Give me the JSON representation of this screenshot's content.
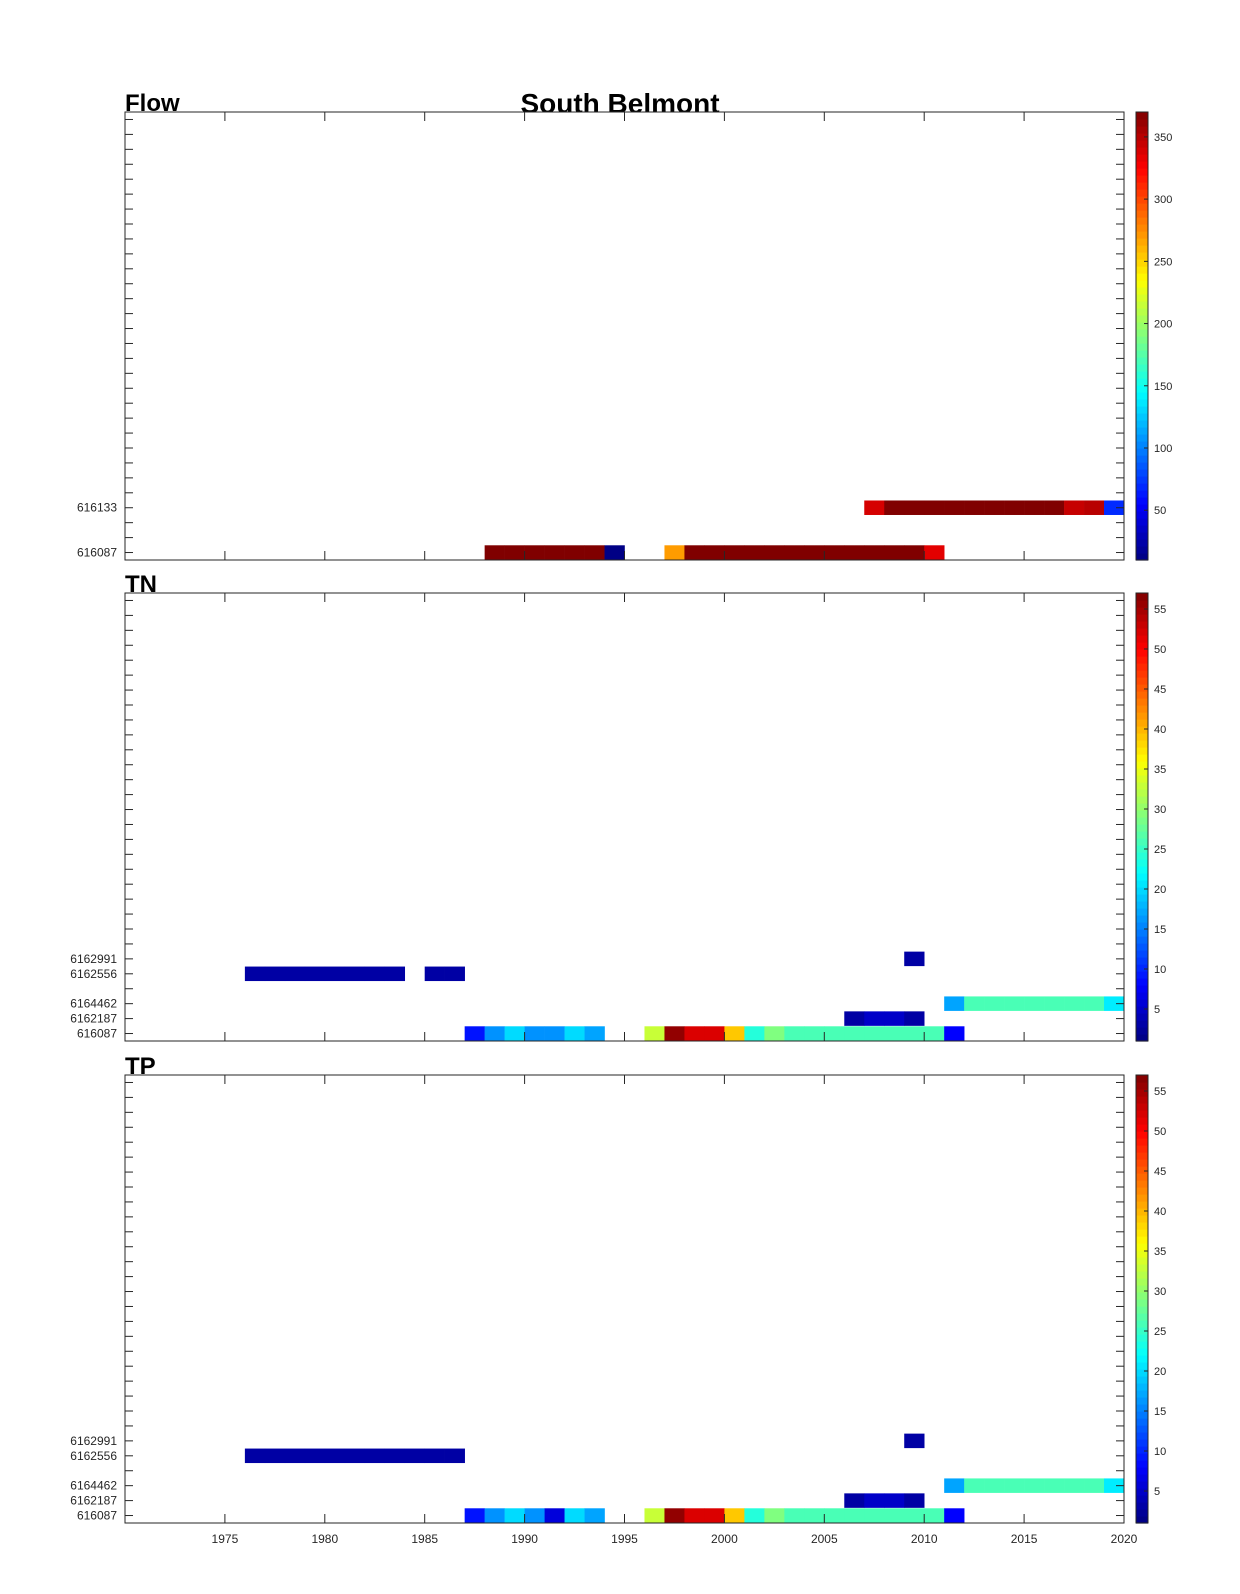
{
  "figure_title": "South Belmont",
  "colormap": "jet",
  "chart_data": [
    {
      "type": "heatmap",
      "title": "Flow",
      "xlim": [
        1970,
        2020
      ],
      "xticks": [
        1975,
        1980,
        1985,
        1990,
        1995,
        2000,
        2005,
        2010,
        2015,
        2020
      ],
      "show_xtick_labels": false,
      "stations": [
        "616087",
        "616133"
      ],
      "station_slot": [
        0,
        3
      ],
      "yslots": 30,
      "clim": [
        10,
        370
      ],
      "colorbar_ticks": [
        50,
        100,
        150,
        200,
        250,
        300,
        350
      ],
      "cells": [
        [
          "616087",
          1988,
          370
        ],
        [
          "616087",
          1989,
          370
        ],
        [
          "616087",
          1990,
          370
        ],
        [
          "616087",
          1991,
          370
        ],
        [
          "616087",
          1992,
          370
        ],
        [
          "616087",
          1993,
          370
        ],
        [
          "616087",
          1994,
          12
        ],
        [
          "616087",
          1997,
          270
        ],
        [
          "616087",
          1998,
          370
        ],
        [
          "616087",
          1999,
          370
        ],
        [
          "616087",
          2000,
          370
        ],
        [
          "616087",
          2001,
          370
        ],
        [
          "616087",
          2002,
          370
        ],
        [
          "616087",
          2003,
          370
        ],
        [
          "616087",
          2004,
          370
        ],
        [
          "616087",
          2005,
          370
        ],
        [
          "616087",
          2006,
          370
        ],
        [
          "616087",
          2007,
          370
        ],
        [
          "616087",
          2008,
          370
        ],
        [
          "616087",
          2009,
          370
        ],
        [
          "616087",
          2010,
          335
        ],
        [
          "616133",
          2007,
          340
        ],
        [
          "616133",
          2008,
          370
        ],
        [
          "616133",
          2009,
          370
        ],
        [
          "616133",
          2010,
          370
        ],
        [
          "616133",
          2011,
          370
        ],
        [
          "616133",
          2012,
          370
        ],
        [
          "616133",
          2013,
          370
        ],
        [
          "616133",
          2014,
          370
        ],
        [
          "616133",
          2015,
          370
        ],
        [
          "616133",
          2016,
          370
        ],
        [
          "616133",
          2017,
          345
        ],
        [
          "616133",
          2018,
          350
        ],
        [
          "616133",
          2019,
          70
        ]
      ]
    },
    {
      "type": "heatmap",
      "title": "TN",
      "xlim": [
        1970,
        2020
      ],
      "xticks": [
        1975,
        1980,
        1985,
        1990,
        1995,
        2000,
        2005,
        2010,
        2015,
        2020
      ],
      "show_xtick_labels": false,
      "stations": [
        "616087",
        "6162187",
        "6164462",
        "6162556",
        "6162991"
      ],
      "station_slot": [
        0,
        1,
        2,
        4,
        5
      ],
      "yslots": 30,
      "clim": [
        1,
        57
      ],
      "colorbar_ticks": [
        5,
        10,
        15,
        20,
        25,
        30,
        35,
        40,
        45,
        50,
        55
      ],
      "cells": [
        [
          "616087",
          1987,
          9
        ],
        [
          "616087",
          1988,
          16
        ],
        [
          "616087",
          1989,
          20
        ],
        [
          "616087",
          1990,
          16
        ],
        [
          "616087",
          1991,
          16
        ],
        [
          "616087",
          1992,
          20
        ],
        [
          "616087",
          1993,
          17
        ],
        [
          "616087",
          1996,
          33
        ],
        [
          "616087",
          1997,
          56
        ],
        [
          "616087",
          1998,
          52
        ],
        [
          "616087",
          1999,
          52
        ],
        [
          "616087",
          2000,
          39
        ],
        [
          "616087",
          2001,
          24
        ],
        [
          "616087",
          2002,
          29
        ],
        [
          "616087",
          2003,
          26
        ],
        [
          "616087",
          2004,
          26
        ],
        [
          "616087",
          2005,
          26
        ],
        [
          "616087",
          2006,
          26
        ],
        [
          "616087",
          2007,
          26
        ],
        [
          "616087",
          2008,
          26
        ],
        [
          "616087",
          2009,
          26
        ],
        [
          "616087",
          2010,
          26
        ],
        [
          "616087",
          2011,
          8
        ],
        [
          "6162187",
          2006,
          3
        ],
        [
          "6162187",
          2007,
          5
        ],
        [
          "6162187",
          2008,
          5
        ],
        [
          "6162187",
          2009,
          3
        ],
        [
          "6164462",
          2011,
          17
        ],
        [
          "6164462",
          2012,
          26
        ],
        [
          "6164462",
          2013,
          26
        ],
        [
          "6164462",
          2014,
          26
        ],
        [
          "6164462",
          2015,
          26
        ],
        [
          "6164462",
          2016,
          26
        ],
        [
          "6164462",
          2017,
          26
        ],
        [
          "6164462",
          2018,
          26
        ],
        [
          "6164462",
          2019,
          21
        ],
        [
          "6162556",
          1976,
          3
        ],
        [
          "6162556",
          1977,
          3
        ],
        [
          "6162556",
          1978,
          3
        ],
        [
          "6162556",
          1979,
          3
        ],
        [
          "6162556",
          1980,
          3
        ],
        [
          "6162556",
          1981,
          3
        ],
        [
          "6162556",
          1982,
          3
        ],
        [
          "6162556",
          1983,
          3
        ],
        [
          "6162556",
          1985,
          3
        ],
        [
          "6162556",
          1986,
          3
        ],
        [
          "6162991",
          2009,
          3
        ]
      ]
    },
    {
      "type": "heatmap",
      "title": "TP",
      "xlim": [
        1970,
        2020
      ],
      "xticks": [
        1975,
        1980,
        1985,
        1990,
        1995,
        2000,
        2005,
        2010,
        2015,
        2020
      ],
      "show_xtick_labels": true,
      "stations": [
        "616087",
        "6162187",
        "6164462",
        "6162556",
        "6162991"
      ],
      "station_slot": [
        0,
        1,
        2,
        4,
        5
      ],
      "yslots": 30,
      "clim": [
        1,
        57
      ],
      "colorbar_ticks": [
        5,
        10,
        15,
        20,
        25,
        30,
        35,
        40,
        45,
        50,
        55
      ],
      "cells": [
        [
          "616087",
          1987,
          9
        ],
        [
          "616087",
          1988,
          16
        ],
        [
          "616087",
          1989,
          20
        ],
        [
          "616087",
          1990,
          16
        ],
        [
          "616087",
          1991,
          6
        ],
        [
          "616087",
          1992,
          20
        ],
        [
          "616087",
          1993,
          17
        ],
        [
          "616087",
          1996,
          33
        ],
        [
          "616087",
          1997,
          56
        ],
        [
          "616087",
          1998,
          52
        ],
        [
          "616087",
          1999,
          52
        ],
        [
          "616087",
          2000,
          39
        ],
        [
          "616087",
          2001,
          24
        ],
        [
          "616087",
          2002,
          29
        ],
        [
          "616087",
          2003,
          26
        ],
        [
          "616087",
          2004,
          26
        ],
        [
          "616087",
          2005,
          26
        ],
        [
          "616087",
          2006,
          26
        ],
        [
          "616087",
          2007,
          26
        ],
        [
          "616087",
          2008,
          26
        ],
        [
          "616087",
          2009,
          26
        ],
        [
          "616087",
          2010,
          26
        ],
        [
          "616087",
          2011,
          8
        ],
        [
          "6162187",
          2006,
          3
        ],
        [
          "6162187",
          2007,
          5
        ],
        [
          "6162187",
          2008,
          5
        ],
        [
          "6162187",
          2009,
          3
        ],
        [
          "6164462",
          2011,
          17
        ],
        [
          "6164462",
          2012,
          26
        ],
        [
          "6164462",
          2013,
          26
        ],
        [
          "6164462",
          2014,
          26
        ],
        [
          "6164462",
          2015,
          26
        ],
        [
          "6164462",
          2016,
          26
        ],
        [
          "6164462",
          2017,
          26
        ],
        [
          "6164462",
          2018,
          26
        ],
        [
          "6164462",
          2019,
          21
        ],
        [
          "6162556",
          1976,
          3
        ],
        [
          "6162556",
          1977,
          3
        ],
        [
          "6162556",
          1978,
          3
        ],
        [
          "6162556",
          1979,
          3
        ],
        [
          "6162556",
          1980,
          3
        ],
        [
          "6162556",
          1981,
          3
        ],
        [
          "6162556",
          1982,
          3
        ],
        [
          "6162556",
          1983,
          3
        ],
        [
          "6162556",
          1984,
          3
        ],
        [
          "6162556",
          1985,
          3
        ],
        [
          "6162556",
          1986,
          3
        ],
        [
          "6162991",
          2009,
          3
        ]
      ]
    }
  ]
}
